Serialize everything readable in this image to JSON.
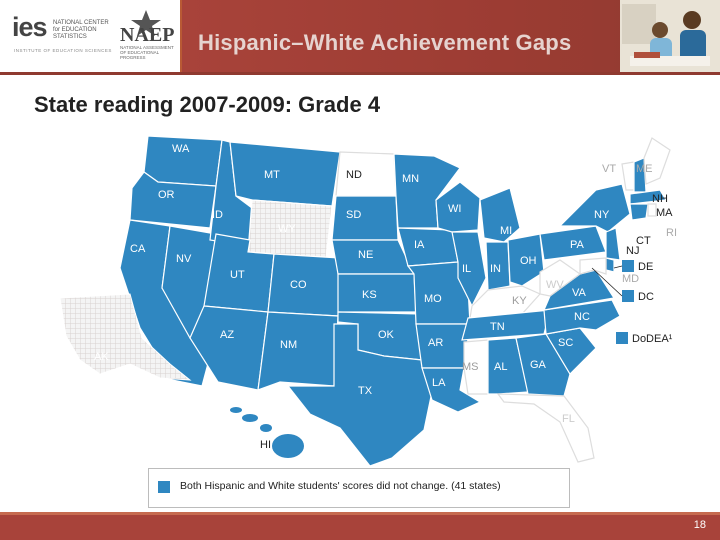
{
  "header": {
    "ies_wordmark": "ies",
    "ies_subtitle": "NATIONAL CENTER for EDUCATION STATISTICS",
    "ies_tagline": "INSTITUTE OF EDUCATION SCIENCES",
    "naep_wordmark": "NAEP",
    "naep_subtitle": "NATIONAL ASSESSMENT OF EDUCATIONAL PROGRESS",
    "title": "Hispanic–White Achievement Gaps"
  },
  "slide": {
    "title": "State reading 2007-2009: Grade 4",
    "page_number": "18"
  },
  "map": {
    "colors": {
      "no_change": "#2f87c1",
      "not_reported": "#ffffff",
      "hatched_fill": "#f4f4f4",
      "hatch_line": "#d9d2d0",
      "border": "#ffffff"
    },
    "states": {
      "WA": "WA",
      "OR": "OR",
      "CA": "CA",
      "NV": "NV",
      "ID": "ID",
      "MT": "MT",
      "WY": "WY",
      "UT": "UT",
      "AZ": "AZ",
      "CO": "CO",
      "NM": "NM",
      "ND": "ND",
      "SD": "SD",
      "NE": "NE",
      "KS": "KS",
      "OK": "OK",
      "TX": "TX",
      "MN": "MN",
      "IA": "IA",
      "MO": "MO",
      "AR": "AR",
      "LA": "LA",
      "WI": "WI",
      "IL": "IL",
      "MI": "MI",
      "IN": "IN",
      "OH": "OH",
      "KY": "KY",
      "TN": "TN",
      "MS": "MS",
      "AL": "AL",
      "GA": "GA",
      "FL": "FL",
      "SC": "SC",
      "NC": "NC",
      "VA": "VA",
      "WV": "WV",
      "PA": "PA",
      "NY": "NY",
      "VT": "VT",
      "ME": "ME",
      "NH": "NH",
      "MA": "MA",
      "CT": "CT",
      "RI": "RI",
      "NJ": "NJ",
      "DE": "DE",
      "MD": "MD",
      "DC": "DC",
      "AK": "AK",
      "HI": "HI"
    },
    "side_labels": {
      "DE": "DE",
      "DC": "DC",
      "DoDEA": "DoDEA¹"
    }
  },
  "legend": {
    "text": "Both Hispanic and White students' scores did not change. (41 states)"
  }
}
